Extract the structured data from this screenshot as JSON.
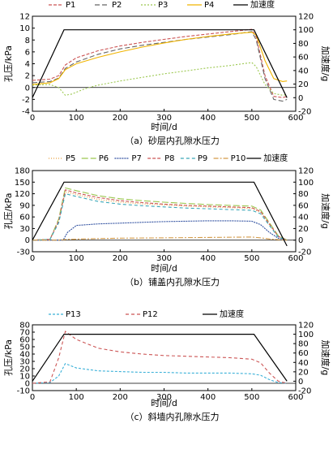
{
  "chart_data": [
    {
      "type": "line",
      "caption": "（a）砂层内孔隙水压力",
      "xlabel": "时间/d",
      "ylabel": "孔压/kPa",
      "y2label": "加速度/g",
      "xlim": [
        0,
        600
      ],
      "ylim": [
        -4,
        12
      ],
      "y2lim": [
        -20,
        120
      ],
      "xticks": [
        0,
        100,
        200,
        300,
        400,
        500,
        600
      ],
      "yticks": [
        -4,
        -2,
        0,
        2,
        4,
        6,
        8,
        10,
        12
      ],
      "y2ticks": [
        -20,
        0,
        20,
        40,
        60,
        80,
        100,
        120
      ],
      "hline": 0,
      "legend_position": "top",
      "series": [
        {
          "name": "P1",
          "color": "#cc5555",
          "dash": "4,2",
          "x": [
            0,
            40,
            60,
            75,
            100,
            150,
            200,
            250,
            300,
            350,
            400,
            450,
            500,
            510,
            530,
            550,
            570,
            580
          ],
          "y": [
            1.2,
            1.4,
            2.0,
            3.8,
            5.0,
            6.2,
            7.0,
            7.6,
            8.1,
            8.6,
            9.0,
            9.4,
            9.8,
            8.5,
            2.0,
            -1.5,
            -1.7,
            -1.5
          ]
        },
        {
          "name": "P2",
          "color": "#666666",
          "dash": "6,3",
          "x": [
            0,
            40,
            60,
            75,
            100,
            150,
            200,
            250,
            300,
            350,
            400,
            450,
            500,
            510,
            530,
            550,
            570,
            580
          ],
          "y": [
            0.8,
            1.0,
            1.6,
            3.2,
            4.3,
            5.6,
            6.5,
            7.1,
            7.6,
            8.1,
            8.5,
            8.9,
            9.4,
            8.0,
            1.5,
            -2.0,
            -2.3,
            -2.0
          ]
        },
        {
          "name": "P3",
          "color": "#9cc850",
          "dash": "2,2",
          "x": [
            0,
            40,
            60,
            75,
            90,
            120,
            150,
            200,
            250,
            300,
            350,
            400,
            450,
            500,
            510,
            530,
            550,
            570,
            580
          ],
          "y": [
            0.4,
            0.5,
            0.0,
            -1.3,
            -1.1,
            -0.2,
            0.4,
            1.1,
            1.7,
            2.3,
            2.8,
            3.3,
            3.7,
            4.2,
            3.5,
            0.5,
            -1.0,
            -1.3,
            -1.2
          ]
        },
        {
          "name": "P4",
          "color": "#f0b400",
          "dash": "",
          "x": [
            0,
            40,
            60,
            75,
            100,
            150,
            200,
            250,
            300,
            350,
            400,
            450,
            500,
            510,
            530,
            550,
            570,
            580
          ],
          "y": [
            0.5,
            0.8,
            1.5,
            3.0,
            4.0,
            5.1,
            6.0,
            6.8,
            7.5,
            8.1,
            8.6,
            9.0,
            9.3,
            8.8,
            4.5,
            1.5,
            1.0,
            1.1
          ]
        },
        {
          "name": "加速度",
          "axis": "y2",
          "color": "#000000",
          "dash": "",
          "x": [
            0,
            72,
            505,
            580
          ],
          "y": [
            0,
            100,
            100,
            0
          ]
        }
      ]
    },
    {
      "type": "line",
      "caption": "（b）铺盖内孔隙水压力",
      "xlabel": "时间/d",
      "ylabel": "孔压/kPa",
      "y2label": "加速度/g",
      "xlim": [
        0,
        600
      ],
      "ylim": [
        -30,
        180
      ],
      "y2lim": [
        -20,
        120
      ],
      "xticks": [
        0,
        100,
        200,
        300,
        400,
        500,
        600
      ],
      "yticks": [
        -30,
        0,
        30,
        60,
        90,
        120,
        150,
        180
      ],
      "y2ticks": [
        -20,
        0,
        20,
        40,
        60,
        80,
        100,
        120
      ],
      "hline": 0,
      "legend_position": "top",
      "series": [
        {
          "name": "P5",
          "color": "#e8a040",
          "dash": "1,2",
          "x": [
            0,
            40,
            60,
            75,
            100,
            150,
            200,
            250,
            300,
            350,
            400,
            450,
            500,
            520,
            540,
            560,
            580
          ],
          "y": [
            0,
            2,
            50,
            125,
            118,
            105,
            98,
            94,
            91,
            88,
            86,
            84,
            82,
            72,
            40,
            10,
            0
          ]
        },
        {
          "name": "P6",
          "color": "#9cc850",
          "dash": "8,3",
          "x": [
            0,
            40,
            60,
            75,
            100,
            150,
            200,
            250,
            300,
            350,
            400,
            450,
            500,
            520,
            540,
            560,
            580
          ],
          "y": [
            0,
            2,
            55,
            135,
            128,
            115,
            107,
            102,
            98,
            95,
            92,
            90,
            88,
            78,
            45,
            12,
            0
          ]
        },
        {
          "name": "P7",
          "color": "#3050a0",
          "dash": "2,1",
          "x": [
            0,
            70,
            80,
            100,
            150,
            200,
            250,
            300,
            350,
            400,
            450,
            500,
            520,
            540,
            560,
            580
          ],
          "y": [
            0,
            0,
            20,
            38,
            42,
            44,
            46,
            48,
            49,
            50,
            50,
            49,
            40,
            20,
            5,
            0
          ]
        },
        {
          "name": "P8",
          "color": "#cc5555",
          "dash": "4,2",
          "x": [
            0,
            40,
            60,
            75,
            100,
            150,
            200,
            250,
            300,
            350,
            400,
            450,
            500,
            520,
            540,
            560,
            580
          ],
          "y": [
            0,
            2,
            50,
            130,
            122,
            110,
            102,
            97,
            93,
            90,
            88,
            86,
            84,
            74,
            42,
            10,
            0
          ]
        },
        {
          "name": "P9",
          "color": "#3aa7b8",
          "dash": "4,3",
          "x": [
            0,
            40,
            60,
            75,
            100,
            150,
            200,
            250,
            300,
            350,
            400,
            450,
            500,
            520,
            540,
            560,
            580
          ],
          "y": [
            0,
            2,
            45,
            120,
            113,
            100,
            93,
            89,
            86,
            83,
            81,
            79,
            77,
            68,
            38,
            8,
            0
          ]
        },
        {
          "name": "P10",
          "color": "#d49a48",
          "dash": "6,2,2,2",
          "x": [
            0,
            60,
            80,
            150,
            200,
            300,
            400,
            500,
            520,
            540,
            560,
            580
          ],
          "y": [
            0,
            0,
            2,
            4,
            5,
            6,
            7,
            8,
            6,
            3,
            1,
            0
          ]
        },
        {
          "name": "加速度",
          "axis": "y2",
          "color": "#000000",
          "dash": "",
          "x": [
            0,
            72,
            505,
            580
          ],
          "y": [
            0,
            100,
            100,
            -10
          ]
        }
      ]
    },
    {
      "type": "line",
      "caption": "（c）斜墙内孔隙水压力",
      "xlabel": "时间/d",
      "ylabel": "孔压/kPa",
      "y2label": "加速度/g",
      "xlim": [
        0,
        600
      ],
      "ylim": [
        -10,
        80
      ],
      "y2lim": [
        -20,
        120
      ],
      "xticks": [
        0,
        100,
        200,
        300,
        400,
        500,
        600
      ],
      "yticks": [
        -10,
        0,
        10,
        20,
        30,
        40,
        50,
        60,
        70,
        80
      ],
      "y2ticks": [
        -20,
        0,
        20,
        40,
        60,
        80,
        100,
        120
      ],
      "hline": 0,
      "legend_position": "top",
      "series": [
        {
          "name": "P13",
          "color": "#3ab0d8",
          "dash": "3,2",
          "x": [
            0,
            40,
            60,
            75,
            100,
            150,
            200,
            250,
            300,
            350,
            400,
            450,
            500,
            520,
            540,
            560,
            580
          ],
          "y": [
            0,
            1,
            10,
            27,
            21,
            17,
            16,
            15,
            15,
            14,
            14,
            14,
            13,
            11,
            5,
            1,
            0
          ]
        },
        {
          "name": "P12",
          "color": "#cc5555",
          "dash": "4,3",
          "x": [
            0,
            40,
            60,
            75,
            100,
            150,
            200,
            250,
            300,
            350,
            400,
            450,
            500,
            520,
            540,
            560,
            580
          ],
          "y": [
            0,
            2,
            35,
            71,
            60,
            48,
            43,
            40,
            38,
            37,
            36,
            35,
            33,
            28,
            14,
            3,
            0
          ]
        },
        {
          "name": "加速度",
          "axis": "y2",
          "color": "#000000",
          "dash": "",
          "x": [
            0,
            72,
            505,
            580
          ],
          "y": [
            0,
            100,
            100,
            0
          ]
        }
      ]
    }
  ]
}
